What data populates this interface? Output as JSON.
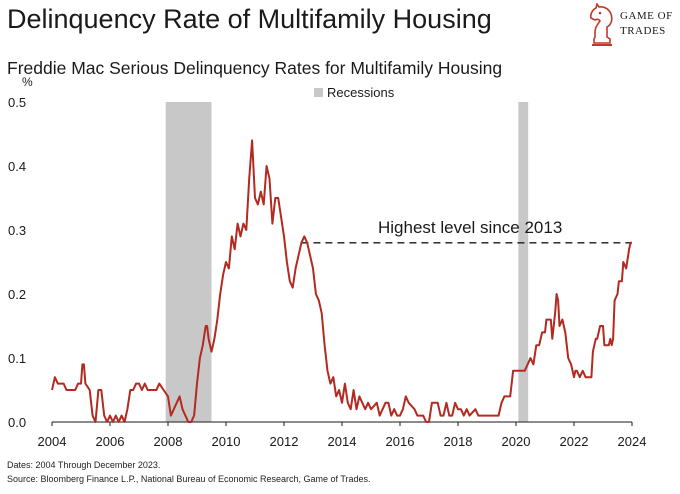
{
  "header": {
    "title": "Delinquency Rate of Multifamily Housing",
    "subtitle": "Freddie Mac Serious Delinquency Rates for Multifamily Housing"
  },
  "logo": {
    "line1": "GAME OF",
    "line2": "TRADES",
    "icon": "knight-chess-piece-icon",
    "color": "#c0392b"
  },
  "footer": {
    "dates": "Dates: 2004 Through December 2023.",
    "source": "Source: Bloomberg Finance L.P., National Bureau of Economic Research, Game of Trades."
  },
  "chart_data": {
    "type": "line",
    "title": "Delinquency Rate of Multifamily Housing",
    "subtitle": "Freddie Mac Serious Delinquency Rates for Multifamily Housing",
    "ylabel": "%",
    "xlim": [
      2004,
      2024
    ],
    "ylim": [
      0,
      0.5
    ],
    "x_ticks": [
      "2004",
      "2006",
      "2008",
      "2010",
      "2012",
      "2014",
      "2016",
      "2018",
      "2020",
      "2022",
      "2024"
    ],
    "y_ticks": [
      "0.0",
      "0.1",
      "0.2",
      "0.3",
      "0.4",
      "0.5"
    ],
    "grid": false,
    "legend": {
      "position": "top",
      "entries": [
        "Recessions"
      ]
    },
    "line_color": "#b22a20",
    "recession_color": "#c8c8c8",
    "recessions": [
      {
        "start": 2007.92,
        "end": 2009.5
      },
      {
        "start": 2020.08,
        "end": 2020.42
      }
    ],
    "annotation": {
      "text": "Highest level since 2013",
      "y": 0.28,
      "x_start": 2012.6,
      "x_end": 2024.0
    },
    "series": [
      {
        "points": [
          [
            2004.0,
            0.05
          ],
          [
            2004.1,
            0.07
          ],
          [
            2004.2,
            0.06
          ],
          [
            2004.4,
            0.06
          ],
          [
            2004.5,
            0.05
          ],
          [
            2004.8,
            0.05
          ],
          [
            2004.9,
            0.06
          ],
          [
            2005.0,
            0.06
          ],
          [
            2005.05,
            0.09
          ],
          [
            2005.1,
            0.09
          ],
          [
            2005.15,
            0.06
          ],
          [
            2005.3,
            0.05
          ],
          [
            2005.4,
            0.01
          ],
          [
            2005.5,
            0.0
          ],
          [
            2005.6,
            0.05
          ],
          [
            2005.7,
            0.05
          ],
          [
            2005.8,
            0.01
          ],
          [
            2005.9,
            0.0
          ],
          [
            2006.0,
            0.01
          ],
          [
            2006.1,
            0.0
          ],
          [
            2006.2,
            0.01
          ],
          [
            2006.3,
            0.0
          ],
          [
            2006.4,
            0.01
          ],
          [
            2006.5,
            0.0
          ],
          [
            2006.6,
            0.02
          ],
          [
            2006.7,
            0.05
          ],
          [
            2006.8,
            0.05
          ],
          [
            2006.9,
            0.06
          ],
          [
            2007.0,
            0.06
          ],
          [
            2007.1,
            0.05
          ],
          [
            2007.2,
            0.06
          ],
          [
            2007.3,
            0.05
          ],
          [
            2007.6,
            0.05
          ],
          [
            2007.7,
            0.06
          ],
          [
            2007.85,
            0.05
          ],
          [
            2008.0,
            0.04
          ],
          [
            2008.1,
            0.01
          ],
          [
            2008.2,
            0.02
          ],
          [
            2008.3,
            0.03
          ],
          [
            2008.4,
            0.04
          ],
          [
            2008.5,
            0.02
          ],
          [
            2008.6,
            0.01
          ],
          [
            2008.7,
            0.0
          ],
          [
            2008.8,
            0.0
          ],
          [
            2008.9,
            0.01
          ],
          [
            2009.0,
            0.06
          ],
          [
            2009.1,
            0.1
          ],
          [
            2009.2,
            0.12
          ],
          [
            2009.3,
            0.15
          ],
          [
            2009.35,
            0.15
          ],
          [
            2009.4,
            0.13
          ],
          [
            2009.5,
            0.11
          ],
          [
            2009.6,
            0.13
          ],
          [
            2009.7,
            0.16
          ],
          [
            2009.8,
            0.2
          ],
          [
            2009.9,
            0.23
          ],
          [
            2010.0,
            0.25
          ],
          [
            2010.1,
            0.24
          ],
          [
            2010.2,
            0.29
          ],
          [
            2010.3,
            0.27
          ],
          [
            2010.4,
            0.31
          ],
          [
            2010.5,
            0.29
          ],
          [
            2010.6,
            0.31
          ],
          [
            2010.7,
            0.3
          ],
          [
            2010.8,
            0.38
          ],
          [
            2010.9,
            0.44
          ],
          [
            2011.0,
            0.35
          ],
          [
            2011.1,
            0.34
          ],
          [
            2011.2,
            0.36
          ],
          [
            2011.3,
            0.34
          ],
          [
            2011.4,
            0.4
          ],
          [
            2011.5,
            0.38
          ],
          [
            2011.6,
            0.31
          ],
          [
            2011.7,
            0.35
          ],
          [
            2011.8,
            0.35
          ],
          [
            2011.9,
            0.32
          ],
          [
            2012.0,
            0.29
          ],
          [
            2012.1,
            0.25
          ],
          [
            2012.2,
            0.22
          ],
          [
            2012.3,
            0.21
          ],
          [
            2012.4,
            0.24
          ],
          [
            2012.5,
            0.26
          ],
          [
            2012.6,
            0.28
          ],
          [
            2012.7,
            0.29
          ],
          [
            2012.8,
            0.28
          ],
          [
            2012.9,
            0.26
          ],
          [
            2013.0,
            0.24
          ],
          [
            2013.1,
            0.2
          ],
          [
            2013.2,
            0.19
          ],
          [
            2013.3,
            0.17
          ],
          [
            2013.4,
            0.12
          ],
          [
            2013.5,
            0.08
          ],
          [
            2013.6,
            0.06
          ],
          [
            2013.7,
            0.07
          ],
          [
            2013.8,
            0.04
          ],
          [
            2013.9,
            0.05
          ],
          [
            2014.0,
            0.03
          ],
          [
            2014.1,
            0.06
          ],
          [
            2014.2,
            0.03
          ],
          [
            2014.3,
            0.02
          ],
          [
            2014.4,
            0.05
          ],
          [
            2014.5,
            0.02
          ],
          [
            2014.6,
            0.04
          ],
          [
            2014.7,
            0.03
          ],
          [
            2014.8,
            0.02
          ],
          [
            2014.9,
            0.03
          ],
          [
            2015.0,
            0.02
          ],
          [
            2015.2,
            0.03
          ],
          [
            2015.3,
            0.01
          ],
          [
            2015.5,
            0.03
          ],
          [
            2015.6,
            0.03
          ],
          [
            2015.7,
            0.01
          ],
          [
            2015.8,
            0.02
          ],
          [
            2015.9,
            0.01
          ],
          [
            2016.0,
            0.01
          ],
          [
            2016.1,
            0.02
          ],
          [
            2016.2,
            0.04
          ],
          [
            2016.3,
            0.03
          ],
          [
            2016.5,
            0.02
          ],
          [
            2016.6,
            0.01
          ],
          [
            2016.8,
            0.01
          ],
          [
            2016.9,
            0.0
          ],
          [
            2017.0,
            0.0
          ],
          [
            2017.1,
            0.03
          ],
          [
            2017.3,
            0.03
          ],
          [
            2017.4,
            0.01
          ],
          [
            2017.5,
            0.01
          ],
          [
            2017.6,
            0.03
          ],
          [
            2017.7,
            0.01
          ],
          [
            2017.8,
            0.01
          ],
          [
            2017.9,
            0.03
          ],
          [
            2018.0,
            0.02
          ],
          [
            2018.1,
            0.02
          ],
          [
            2018.2,
            0.01
          ],
          [
            2018.3,
            0.02
          ],
          [
            2018.4,
            0.01
          ],
          [
            2018.6,
            0.02
          ],
          [
            2018.7,
            0.01
          ],
          [
            2019.4,
            0.01
          ],
          [
            2019.5,
            0.03
          ],
          [
            2019.6,
            0.04
          ],
          [
            2019.8,
            0.04
          ],
          [
            2019.9,
            0.08
          ],
          [
            2020.0,
            0.08
          ],
          [
            2020.3,
            0.08
          ],
          [
            2020.4,
            0.09
          ],
          [
            2020.5,
            0.1
          ],
          [
            2020.6,
            0.09
          ],
          [
            2020.7,
            0.12
          ],
          [
            2020.8,
            0.12
          ],
          [
            2020.9,
            0.14
          ],
          [
            2021.0,
            0.14
          ],
          [
            2021.05,
            0.16
          ],
          [
            2021.2,
            0.16
          ],
          [
            2021.25,
            0.13
          ],
          [
            2021.35,
            0.17
          ],
          [
            2021.4,
            0.2
          ],
          [
            2021.45,
            0.19
          ],
          [
            2021.5,
            0.15
          ],
          [
            2021.6,
            0.16
          ],
          [
            2021.7,
            0.14
          ],
          [
            2021.8,
            0.1
          ],
          [
            2021.9,
            0.09
          ],
          [
            2022.0,
            0.07
          ],
          [
            2022.05,
            0.08
          ],
          [
            2022.1,
            0.08
          ],
          [
            2022.2,
            0.07
          ],
          [
            2022.3,
            0.08
          ],
          [
            2022.4,
            0.07
          ],
          [
            2022.6,
            0.07
          ],
          [
            2022.65,
            0.11
          ],
          [
            2022.75,
            0.13
          ],
          [
            2022.8,
            0.13
          ],
          [
            2022.9,
            0.15
          ],
          [
            2023.0,
            0.15
          ],
          [
            2023.05,
            0.12
          ],
          [
            2023.2,
            0.12
          ],
          [
            2023.25,
            0.13
          ],
          [
            2023.3,
            0.12
          ],
          [
            2023.35,
            0.13
          ],
          [
            2023.4,
            0.19
          ],
          [
            2023.5,
            0.2
          ],
          [
            2023.55,
            0.22
          ],
          [
            2023.65,
            0.22
          ],
          [
            2023.7,
            0.25
          ],
          [
            2023.8,
            0.24
          ],
          [
            2023.9,
            0.27
          ],
          [
            2023.95,
            0.28
          ],
          [
            2024.0,
            0.28
          ]
        ]
      }
    ]
  }
}
